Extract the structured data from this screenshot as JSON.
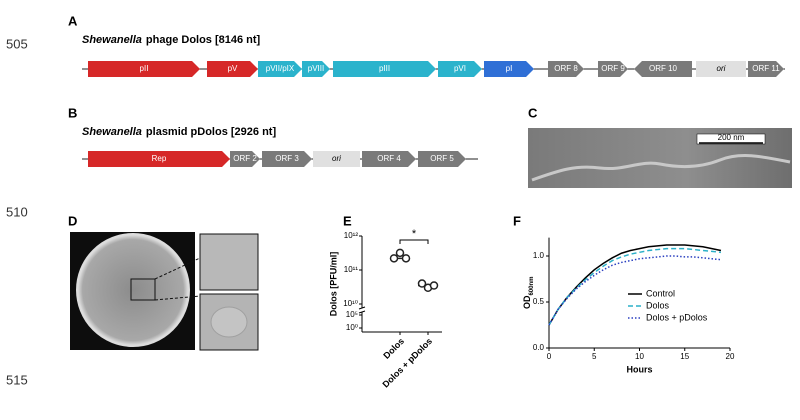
{
  "line_numbers": [
    "505",
    "510",
    "515"
  ],
  "panels": {
    "A": {
      "label": "A",
      "title_italic": "Shewanella",
      "title_rest": "phage Dolos [8146 nt]",
      "genes": [
        "pII",
        "pV",
        "pVII/pIX",
        "pVIII",
        "pIII",
        "pVI",
        "pI",
        "ORF 8",
        "ORF 9",
        "ORF 10",
        "ori",
        "ORF 11"
      ]
    },
    "B": {
      "label": "B",
      "title_italic": "Shewanella",
      "title_rest": "plasmid pDolos [2926 nt]",
      "genes": [
        "Rep",
        "ORF 2",
        "ORF 3",
        "ori",
        "ORF 4",
        "ORF 5"
      ]
    },
    "C": {
      "label": "C",
      "scale_bar": "200 nm"
    },
    "D": {
      "label": "D"
    }
  },
  "chart_data": [
    {
      "label": "E",
      "type": "dot",
      "ylabel": "Dolos [PFU/ml]",
      "categories": [
        "Dolos",
        "Dolos + pDolos"
      ],
      "values": [
        [
          220000000000,
          320000000000,
          220000000000
        ],
        [
          40000000000,
          30000000000,
          35000000000
        ]
      ],
      "medians": [
        220000000000,
        35000000000
      ],
      "annotation": "*",
      "color": "#222222",
      "log": true,
      "ylim": [
        1,
        1000000000000
      ],
      "yticks": [
        {
          "value": 1000000000000,
          "label": "10¹²"
        },
        {
          "value": 100000000000,
          "label": "10¹¹"
        },
        {
          "value": 10000000000,
          "label": "10¹⁰"
        },
        {
          "value": 100000,
          "label": "10⁵"
        },
        {
          "value": 1,
          "label": "10⁰"
        }
      ]
    },
    {
      "label": "F",
      "type": "line",
      "xlabel": "Hours",
      "ylabel": "OD",
      "ylabel_sub": "600nm",
      "x": [
        0,
        1,
        2,
        3,
        4,
        5,
        6,
        7,
        8,
        9,
        10,
        11,
        12,
        13,
        14,
        15,
        16,
        17,
        18,
        19
      ],
      "series": [
        {
          "name": "Control",
          "color": "#000000",
          "style": "solid",
          "values": [
            0.25,
            0.42,
            0.55,
            0.66,
            0.76,
            0.85,
            0.92,
            0.98,
            1.03,
            1.06,
            1.08,
            1.1,
            1.11,
            1.12,
            1.12,
            1.12,
            1.11,
            1.1,
            1.08,
            1.06
          ]
        },
        {
          "name": "Dolos",
          "color": "#2bb0c8",
          "style": "dashed",
          "values": [
            0.25,
            0.42,
            0.55,
            0.65,
            0.74,
            0.82,
            0.89,
            0.95,
            0.99,
            1.02,
            1.04,
            1.06,
            1.07,
            1.08,
            1.08,
            1.08,
            1.07,
            1.06,
            1.05,
            1.04
          ]
        },
        {
          "name": "Dolos + pDolos",
          "color": "#2a3fc0",
          "style": "dotted",
          "values": [
            0.25,
            0.42,
            0.54,
            0.64,
            0.72,
            0.79,
            0.85,
            0.9,
            0.93,
            0.95,
            0.97,
            0.98,
            0.99,
            1.0,
            1.0,
            0.99,
            0.99,
            0.98,
            0.97,
            0.96
          ]
        }
      ],
      "xlim": [
        0,
        20
      ],
      "ylim": [
        0,
        1.2
      ],
      "xticks": [
        0,
        5,
        10,
        15,
        20
      ],
      "yticks": [
        {
          "value": 0,
          "label": "0.0"
        },
        {
          "value": 0.5,
          "label": "0.5"
        },
        {
          "value": 1,
          "label": "1.0"
        }
      ],
      "legend": "center-right"
    }
  ]
}
